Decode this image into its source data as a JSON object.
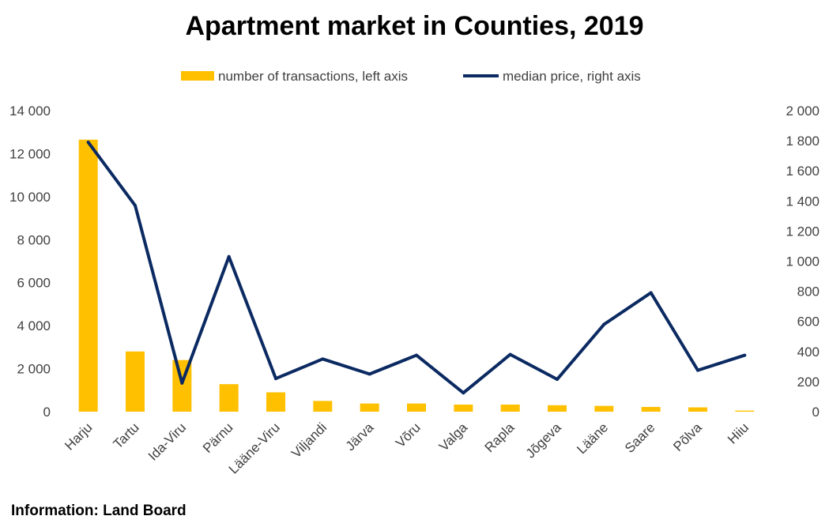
{
  "page": {
    "title": "Apartment market in Counties, 2019",
    "source": "Information: Land Board"
  },
  "colors": {
    "bar": "#FFC000",
    "line": "#0B2A62",
    "axis_text": "#404040"
  },
  "chart_data": {
    "type": "bar",
    "title": "Apartment market in Counties, 2019",
    "categories": [
      "Harju",
      "Tartu",
      "Ida-Viru",
      "Pärnu",
      "Lääne-Viru",
      "Viljandi",
      "Järva",
      "Võru",
      "Valga",
      "Rapla",
      "Jõgeva",
      "Lääne",
      "Saare",
      "Põlva",
      "Hiiu"
    ],
    "series": [
      {
        "name": "number of transactions, left axis",
        "type": "bar",
        "axis": "left",
        "values": [
          12650,
          2800,
          2400,
          1280,
          900,
          500,
          380,
          380,
          330,
          330,
          300,
          270,
          220,
          200,
          50
        ]
      },
      {
        "name": "median price, right axis",
        "type": "line",
        "axis": "right",
        "values": [
          1790,
          1370,
          190,
          1030,
          220,
          350,
          250,
          375,
          125,
          380,
          215,
          580,
          790,
          275,
          375
        ]
      }
    ],
    "y_left": {
      "min": 0,
      "max": 14000,
      "ticks": [
        "0",
        "2 000",
        "4 000",
        "6 000",
        "8 000",
        "10 000",
        "12 000",
        "14 000"
      ]
    },
    "y_right": {
      "min": 0,
      "max": 2000,
      "ticks": [
        "0",
        "200",
        "400",
        "600",
        "800",
        "1 000",
        "1 200",
        "1 400",
        "1 600",
        "1 800",
        "2 000"
      ]
    },
    "legend": "top",
    "grid": false
  }
}
